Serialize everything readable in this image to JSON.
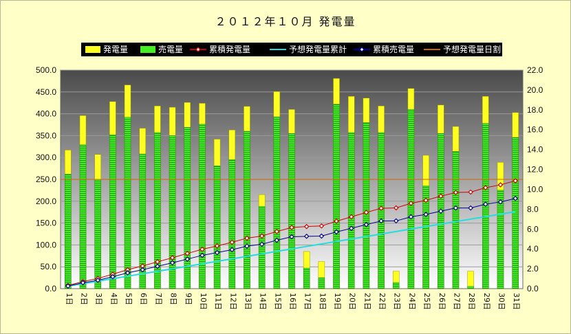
{
  "chart_data": {
    "type": "bar",
    "title": "２０１２年１０月 発電量",
    "categories": [
      "1日",
      "2日",
      "3日",
      "4日",
      "5日",
      "6日",
      "7日",
      "8日",
      "9日",
      "10日",
      "11日",
      "12日",
      "13日",
      "14日",
      "15日",
      "16日",
      "17日",
      "18日",
      "19日",
      "20日",
      "21日",
      "22日",
      "23日",
      "24日",
      "25日",
      "26日",
      "27日",
      "28日",
      "29日",
      "30日",
      "31日"
    ],
    "legend": [
      "発電量",
      "売電量",
      "累積発電量",
      "予想発電量累計",
      "累積売電量",
      "予想発電量日割"
    ],
    "legend_position": "top",
    "grid": true,
    "left_axis": {
      "min": 0,
      "max": 500,
      "step": 50,
      "ticks": [
        "0.0",
        "50.0",
        "100.0",
        "150.0",
        "200.0",
        "250.0",
        "300.0",
        "350.0",
        "400.0",
        "450.0",
        "500.0"
      ]
    },
    "right_axis": {
      "min": 0,
      "max": 22,
      "step": 2,
      "ticks": [
        "0.0",
        "2.0",
        "4.0",
        "6.0",
        "8.0",
        "10.0",
        "12.0",
        "14.0",
        "16.0",
        "18.0",
        "20.0",
        "22.0"
      ]
    },
    "series": [
      {
        "name": "発電量",
        "axis": "left",
        "kind": "bar",
        "color": "#ffff22",
        "values": [
          317,
          396,
          307,
          428,
          466,
          367,
          418,
          415,
          426,
          424,
          342,
          363,
          417,
          215,
          451,
          410,
          85,
          62,
          481,
          440,
          436,
          418,
          40,
          458,
          305,
          420,
          371,
          40,
          440,
          289,
          403
        ]
      },
      {
        "name": "売電量",
        "axis": "left",
        "kind": "bar",
        "color": "#44ee22",
        "values": [
          262,
          329,
          250,
          352,
          392,
          308,
          357,
          350,
          369,
          376,
          281,
          295,
          360,
          188,
          393,
          355,
          47,
          25,
          422,
          357,
          380,
          357,
          14,
          410,
          235,
          355,
          314,
          5,
          378,
          225,
          346
        ]
      },
      {
        "name": "累積発電量",
        "axis": "right",
        "kind": "line",
        "color": "#cc0000",
        "values": [
          0.32,
          0.71,
          1.02,
          1.45,
          1.91,
          2.28,
          2.7,
          3.11,
          3.54,
          3.96,
          4.3,
          4.67,
          5.08,
          5.3,
          5.75,
          6.16,
          6.25,
          6.31,
          6.79,
          7.23,
          7.67,
          8.09,
          8.13,
          8.59,
          8.89,
          9.31,
          9.68,
          9.72,
          10.16,
          10.45,
          10.86
        ]
      },
      {
        "name": "予想発電量累計",
        "axis": "right",
        "kind": "line",
        "color": "#22dddd",
        "values": [
          0.25,
          0.5,
          0.75,
          1.0,
          1.25,
          1.5,
          1.75,
          2.0,
          2.25,
          2.5,
          2.75,
          3.0,
          3.25,
          3.5,
          3.75,
          4.0,
          4.25,
          4.5,
          4.75,
          5.0,
          5.25,
          5.5,
          5.75,
          6.0,
          6.25,
          6.5,
          6.75,
          7.0,
          7.25,
          7.5,
          7.75
        ]
      },
      {
        "name": "累積売電量",
        "axis": "right",
        "kind": "line",
        "color": "#000088",
        "values": [
          0.26,
          0.59,
          0.84,
          1.2,
          1.59,
          1.9,
          2.25,
          2.6,
          2.97,
          3.35,
          3.63,
          3.92,
          4.28,
          4.47,
          4.87,
          5.22,
          5.27,
          5.29,
          5.71,
          6.07,
          6.45,
          6.81,
          6.82,
          7.23,
          7.47,
          7.8,
          8.12,
          8.12,
          8.5,
          8.73,
          9.08
        ]
      },
      {
        "name": "予想発電量日割",
        "axis": "left",
        "kind": "line",
        "color": "#cc6600",
        "values": [
          250,
          250,
          250,
          250,
          250,
          250,
          250,
          250,
          250,
          250,
          250,
          250,
          250,
          250,
          250,
          250,
          250,
          250,
          250,
          250,
          250,
          250,
          250,
          250,
          250,
          250,
          250,
          250,
          250,
          250,
          250
        ]
      }
    ]
  }
}
